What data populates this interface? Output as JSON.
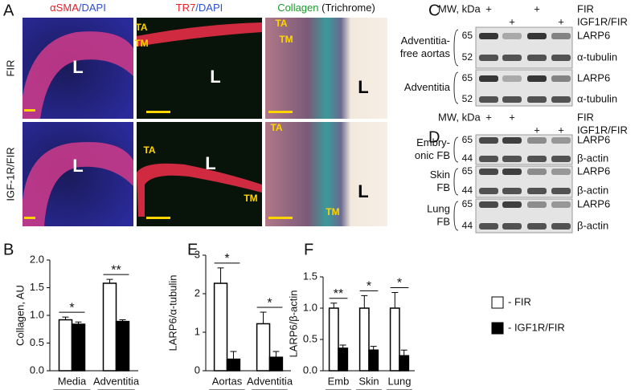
{
  "panel_letters": [
    "A",
    "B",
    "C",
    "D",
    "E",
    "F"
  ],
  "panel_a": {
    "headers": [
      [
        {
          "text": "αSMA",
          "color": "#e8202a"
        },
        {
          "text": "/DAPI",
          "color": "#2b4fd0"
        }
      ],
      [
        {
          "text": "TR7",
          "color": "#e8202a"
        },
        {
          "text": "/DAPI",
          "color": "#2b4fd0"
        }
      ],
      [
        {
          "text": "Collagen",
          "color": "#1c9a2c"
        },
        {
          "text": " (Trichrome)",
          "color": "#111111"
        }
      ]
    ],
    "rows": [
      "FIR",
      "IGF-1R/FIR"
    ],
    "image_labels": [
      "L",
      "TA",
      "TM",
      "L",
      "TA",
      "TM",
      "L",
      "L",
      "TA",
      "TM",
      "L",
      "TA",
      "TM",
      "L"
    ]
  },
  "panel_c": {
    "mw_label": "MW, kDa",
    "conditions": [
      {
        "label": "FIR",
        "lanes": [
          "+",
          null,
          "+",
          null
        ]
      },
      {
        "label": "IGF1R/FIR",
        "lanes": [
          null,
          "+",
          null,
          "+"
        ]
      }
    ],
    "blots": [
      {
        "row": [
          "Adventitia-",
          "free aortas"
        ],
        "mw": [
          "65",
          "52"
        ],
        "bands": [
          "LARP6",
          "α-tubulin"
        ]
      },
      {
        "row": [
          "Adventitia"
        ],
        "mw": [
          "65",
          "52"
        ],
        "bands": [
          "LARP6",
          "α-tubulin"
        ]
      }
    ]
  },
  "panel_d": {
    "mw_label": "MW, kDa",
    "conditions": [
      {
        "label": "FIR",
        "lanes": [
          "+",
          "+",
          null,
          null
        ]
      },
      {
        "label": "IGF1R/FIR",
        "lanes": [
          null,
          null,
          "+",
          "+"
        ]
      }
    ],
    "blots": [
      {
        "row": [
          "Embry-",
          "onic FB"
        ],
        "mw": [
          "65",
          "44"
        ],
        "bands": [
          "LARP6",
          "β-actin"
        ]
      },
      {
        "row": [
          "Skin",
          "FB"
        ],
        "mw": [
          "65",
          "44"
        ],
        "bands": [
          "LARP6",
          "β-actin"
        ]
      },
      {
        "row": [
          "Lung",
          "FB"
        ],
        "mw": [
          "65",
          "44"
        ],
        "bands": [
          "LARP6",
          "β-actin"
        ]
      }
    ]
  },
  "legend": [
    {
      "label": "- FIR",
      "color": "#ffffff"
    },
    {
      "label": "- IGF1R/FIR",
      "color": "#000000"
    }
  ],
  "chart_data": [
    {
      "type": "bar",
      "y_label": "Collagen, AU",
      "categories": [
        "Media",
        "Adventitia"
      ],
      "ylim": [
        0,
        2
      ],
      "yticks": [
        {
          "value": 0,
          "label": "0.0"
        },
        {
          "value": 0.5,
          "label": "0.5"
        },
        {
          "value": 1,
          "label": "1.0"
        },
        {
          "value": 1.5,
          "label": "1.5"
        },
        {
          "value": 2,
          "label": "2.0"
        }
      ],
      "series": [
        {
          "name": "FIR",
          "color": "#ffffff",
          "values": [
            0.92,
            1.58
          ],
          "errors": [
            0.05,
            0.07
          ]
        },
        {
          "name": "IGF1R/FIR",
          "color": "#000000",
          "values": [
            0.84,
            0.89
          ],
          "errors": [
            0.04,
            0.03
          ]
        }
      ],
      "significance": [
        "*",
        "**"
      ]
    },
    {
      "type": "bar",
      "y_label": "LARP6/α-tubulin",
      "categories": [
        "Aortas",
        "Adventitia"
      ],
      "ylim": [
        0,
        3
      ],
      "yticks": [
        0,
        1,
        2,
        3
      ],
      "series": [
        {
          "name": "FIR",
          "color": "#ffffff",
          "values": [
            2.27,
            1.22
          ],
          "errors": [
            0.4,
            0.3
          ]
        },
        {
          "name": "IGF1R/FIR",
          "color": "#000000",
          "values": [
            0.3,
            0.35
          ],
          "errors": [
            0.2,
            0.15
          ]
        }
      ],
      "significance": [
        "*",
        "*"
      ]
    },
    {
      "type": "bar",
      "y_label": "LARP6/β-actin",
      "categories": [
        "Emb",
        "Skin",
        "Lung"
      ],
      "ylim": [
        0,
        1.5
      ],
      "yticks": [
        {
          "value": 0,
          "label": "0.0"
        },
        {
          "value": 0.5,
          "label": "0.5"
        },
        {
          "value": 1,
          "label": "1.0"
        },
        {
          "value": 1.5,
          "label": "1.5"
        }
      ],
      "series": [
        {
          "name": "FIR",
          "color": "#ffffff",
          "values": [
            1,
            1,
            1
          ],
          "errors": [
            0.08,
            0.2,
            0.25
          ]
        },
        {
          "name": "IGF1R/FIR",
          "color": "#000000",
          "values": [
            0.36,
            0.33,
            0.24
          ],
          "errors": [
            0.05,
            0.06,
            0.09
          ]
        }
      ],
      "significance": [
        "**",
        "*",
        "*"
      ]
    }
  ]
}
